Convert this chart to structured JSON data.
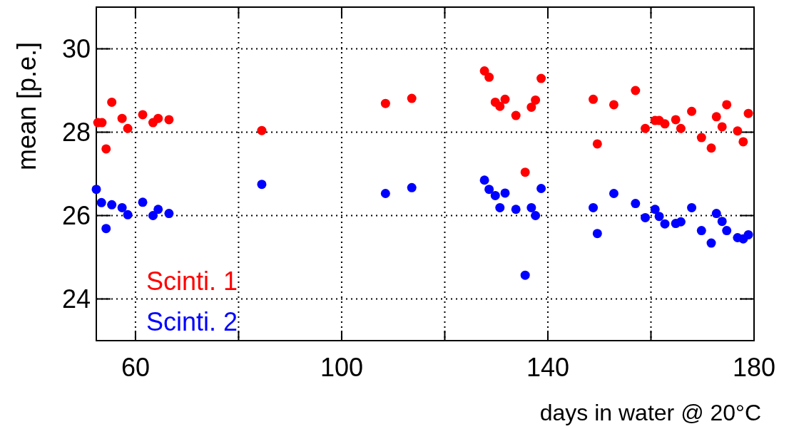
{
  "chart_data": {
    "type": "scatter",
    "xlabel": "days in water @ 20°C",
    "ylabel": "mean [p.e.]",
    "xlim": [
      52.4,
      180
    ],
    "ylim": [
      23,
      31
    ],
    "xticks": [
      60,
      {
        "value": 80,
        "label": null
      },
      100,
      {
        "value": 120,
        "label": null
      },
      140,
      {
        "value": 160,
        "label": null
      },
      180
    ],
    "yticks": [
      24,
      26,
      28,
      30
    ],
    "grid": true,
    "legend": "bottom left",
    "marker": "circle",
    "series": [
      {
        "name": "Scinti. 1",
        "color": "#ff0000",
        "x": [
          52.7,
          53.5,
          54.3,
          55.4,
          57.4,
          58.5,
          61.4,
          63.4,
          64.4,
          66.5,
          84.5,
          108.5,
          113.6,
          127.7,
          128.6,
          129.8,
          130.7,
          131.7,
          133.8,
          135.6,
          136.8,
          137.6,
          138.7,
          148.8,
          149.6,
          152.8,
          157.0,
          158.9,
          160.8,
          161.6,
          162.7,
          164.8,
          165.8,
          167.9,
          169.8,
          171.7,
          172.7,
          173.8,
          174.7,
          176.8,
          177.9,
          178.9
        ],
        "values": [
          28.23,
          28.23,
          27.6,
          28.72,
          28.33,
          28.09,
          28.42,
          28.23,
          28.33,
          28.3,
          28.04,
          28.69,
          28.81,
          29.47,
          29.32,
          28.72,
          28.62,
          28.79,
          28.4,
          27.04,
          28.6,
          28.77,
          29.29,
          28.79,
          27.72,
          28.66,
          29.0,
          28.09,
          28.28,
          28.28,
          28.2,
          28.3,
          28.09,
          28.5,
          27.87,
          27.62,
          28.37,
          28.13,
          28.66,
          28.03,
          27.77,
          28.45
        ]
      },
      {
        "name": "Scinti. 2",
        "color": "#0000ff",
        "x": [
          52.4,
          53.4,
          54.3,
          55.4,
          57.4,
          58.5,
          61.4,
          63.4,
          64.4,
          66.5,
          84.5,
          108.5,
          113.6,
          127.7,
          128.6,
          129.8,
          130.7,
          131.7,
          133.8,
          135.6,
          136.8,
          137.6,
          138.7,
          148.8,
          149.6,
          152.8,
          157.0,
          158.9,
          160.8,
          161.6,
          162.7,
          164.8,
          165.8,
          167.9,
          169.8,
          171.7,
          172.7,
          173.8,
          174.7,
          176.8,
          177.9,
          178.9
        ],
        "values": [
          26.63,
          26.31,
          25.69,
          26.26,
          26.19,
          26.02,
          26.32,
          26.0,
          26.15,
          26.05,
          26.75,
          26.53,
          26.67,
          26.85,
          26.63,
          26.48,
          26.19,
          26.54,
          26.15,
          24.57,
          26.19,
          26.0,
          26.65,
          26.19,
          25.57,
          26.53,
          26.29,
          25.95,
          26.15,
          25.98,
          25.8,
          25.81,
          25.85,
          26.19,
          25.64,
          25.34,
          26.05,
          25.86,
          25.64,
          25.47,
          25.44,
          25.54
        ]
      }
    ]
  }
}
